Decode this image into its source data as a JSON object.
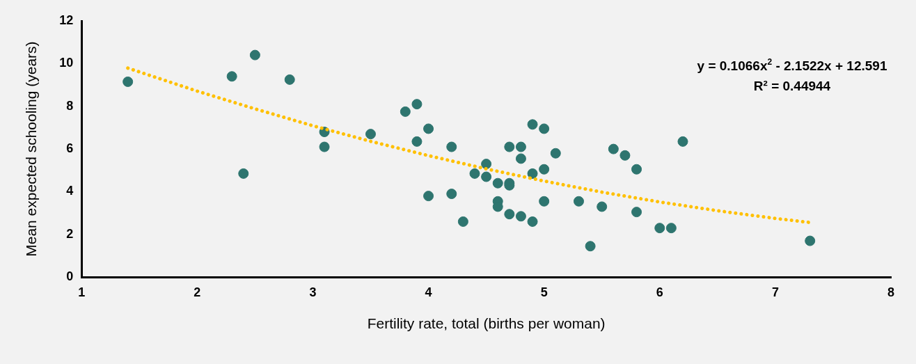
{
  "chart_data": {
    "type": "scatter",
    "xlabel": "Fertility rate, total (births per woman)",
    "ylabel": "Mean expected schooling (years)",
    "xlim": [
      1,
      8
    ],
    "xticks": [
      1,
      2,
      3,
      4,
      5,
      6,
      7,
      8
    ],
    "ylim": [
      0,
      12
    ],
    "yticks": [
      0,
      2,
      4,
      6,
      8,
      10,
      12
    ],
    "grid": false,
    "legend": false,
    "marker": "circle",
    "annotations": [
      "y = 0.1066x$^{2}$ - 2.1522x + 12.591",
      "R² = 0.44944"
    ],
    "series": [
      {
        "type": "scatter",
        "color": "#2e756f",
        "x": [
          1.4,
          2.3,
          2.5,
          2.4,
          2.8,
          3.1,
          3.1,
          3.5,
          3.8,
          3.9,
          3.9,
          4.0,
          4.0,
          4.2,
          4.2,
          4.3,
          4.4,
          4.5,
          4.5,
          4.6,
          4.7,
          4.7,
          4.6,
          4.6,
          4.7,
          4.8,
          4.9,
          4.7,
          4.8,
          4.8,
          4.9,
          5.0,
          5.1,
          4.9,
          5.0,
          5.0,
          5.3,
          5.4,
          5.5,
          5.6,
          5.7,
          5.8,
          6.2,
          5.8,
          6.0,
          6.1,
          7.3
        ],
        "values": [
          9.15,
          9.4,
          10.4,
          4.85,
          9.25,
          6.8,
          6.1,
          6.7,
          7.75,
          8.1,
          6.35,
          6.95,
          3.8,
          6.1,
          3.9,
          2.6,
          4.85,
          5.3,
          4.7,
          4.4,
          4.4,
          4.3,
          3.55,
          3.3,
          2.95,
          2.85,
          2.6,
          6.1,
          6.1,
          5.55,
          7.15,
          6.95,
          5.8,
          4.85,
          5.05,
          3.55,
          3.55,
          1.45,
          3.3,
          6.0,
          5.7,
          5.05,
          6.35,
          3.05,
          2.3,
          2.3,
          1.7
        ]
      },
      {
        "type": "line",
        "color": "#ffc000",
        "line_style": "dotted",
        "marker": "none",
        "x": [
          1.4,
          2,
          2.5,
          3,
          3.5,
          4,
          4.5,
          5,
          5.5,
          6,
          6.5,
          7,
          7.3
        ],
        "values": [
          9.79,
          8.71,
          7.88,
          7.09,
          6.36,
          5.69,
          5.07,
          4.5,
          3.98,
          3.52,
          3.11,
          2.75,
          2.56
        ]
      }
    ]
  }
}
